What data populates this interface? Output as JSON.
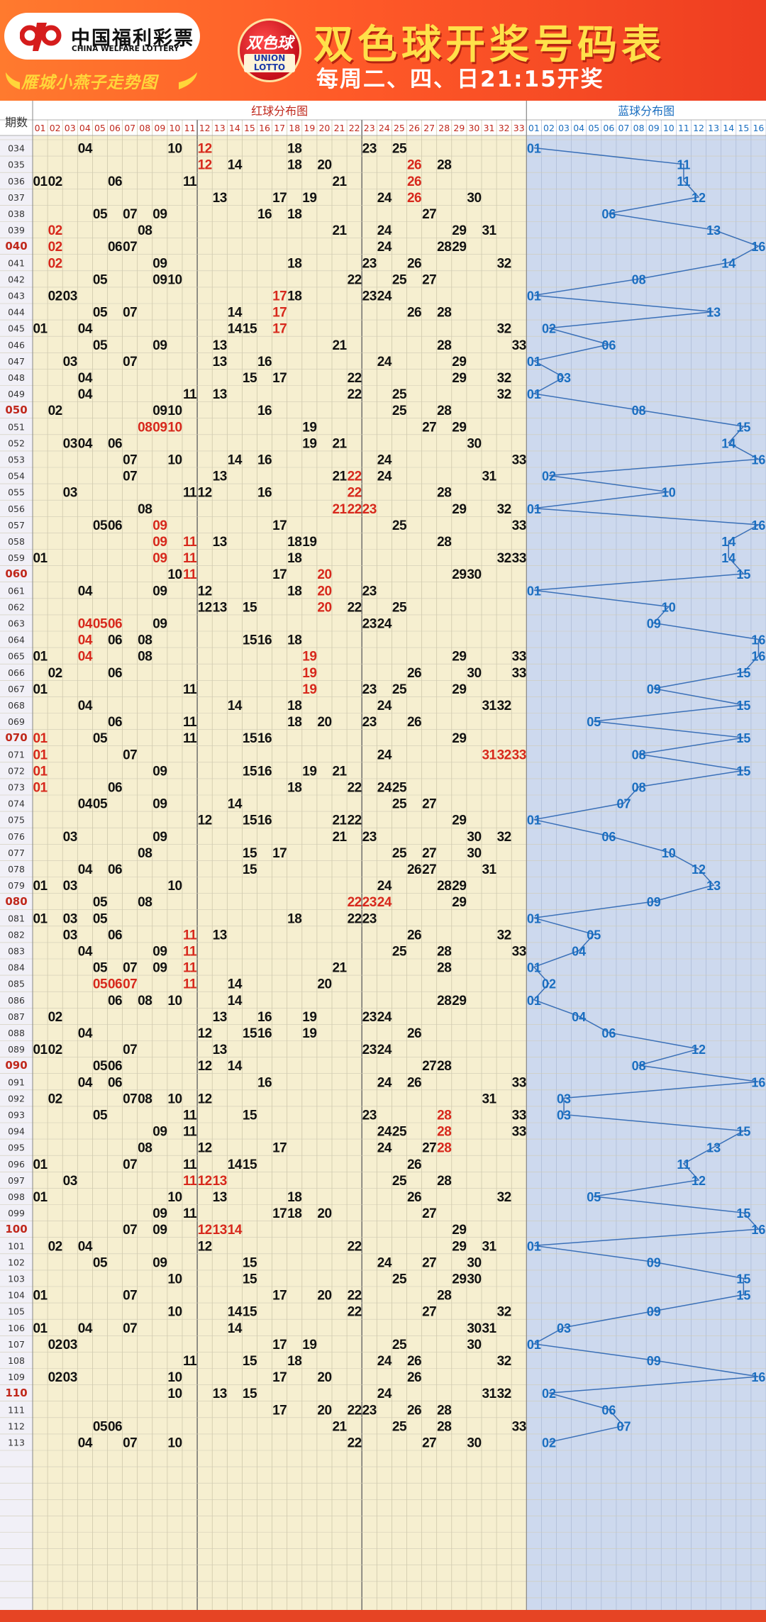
{
  "header": {
    "logo_cn": "中国福利彩票",
    "logo_en": "CHINA WELFARE LOTTERY",
    "union_cn": "双色球",
    "union_en_1": "UNION",
    "union_en_2": "LOTTO",
    "title": "双色球开奖号码表",
    "schedule": "每周二、四、日21:15开奖",
    "subtitle": "雁城小燕子走势图"
  },
  "colors": {
    "red_zone_bg": "#f6efd0",
    "blue_zone_bg": "#cdd9ee",
    "red_number": "#d7281c",
    "blue_number": "#1a6ec0",
    "black_number": "#111111",
    "line": "#3a70b8"
  },
  "chart_data": {
    "type": "table",
    "title": "双色球开奖号码表",
    "period_header": "期数",
    "red_zone_label": "红球分布图",
    "blue_zone_label": "蓝球分布图",
    "red_columns": [
      "01",
      "02",
      "03",
      "04",
      "05",
      "06",
      "07",
      "08",
      "09",
      "10",
      "11",
      "12",
      "13",
      "14",
      "15",
      "16",
      "17",
      "18",
      "19",
      "20",
      "21",
      "22",
      "23",
      "24",
      "25",
      "26",
      "27",
      "28",
      "29",
      "30",
      "31",
      "32",
      "33"
    ],
    "blue_columns": [
      "01",
      "02",
      "03",
      "04",
      "05",
      "06",
      "07",
      "08",
      "09",
      "10",
      "11",
      "12",
      "13",
      "14",
      "15",
      "16"
    ],
    "note": "highlight marks numbers drawn in red (repeat/consecutive indicators); bold periods shown in red",
    "draws": [
      {
        "period": "034",
        "red": [
          4,
          10,
          12,
          18,
          23,
          25
        ],
        "blue": 1,
        "highlight": [
          12
        ]
      },
      {
        "period": "035",
        "red": [
          12,
          14,
          18,
          20,
          26,
          28
        ],
        "blue": 11,
        "highlight": [
          12,
          26
        ]
      },
      {
        "period": "036",
        "red": [
          1,
          2,
          6,
          11,
          21,
          26
        ],
        "blue": 11,
        "highlight": [
          26
        ]
      },
      {
        "period": "037",
        "red": [
          13,
          17,
          19,
          24,
          26,
          30
        ],
        "blue": 12,
        "highlight": [
          26
        ]
      },
      {
        "period": "038",
        "red": [
          5,
          7,
          9,
          16,
          18,
          27
        ],
        "blue": 6,
        "highlight": []
      },
      {
        "period": "039",
        "red": [
          2,
          8,
          21,
          24,
          29,
          31
        ],
        "blue": 13,
        "highlight": [
          2
        ]
      },
      {
        "period": "040",
        "red": [
          2,
          6,
          7,
          24,
          28,
          29
        ],
        "blue": 16,
        "highlight": [
          2
        ]
      },
      {
        "period": "041",
        "red": [
          2,
          9,
          18,
          23,
          26,
          32
        ],
        "blue": 14,
        "highlight": [
          2
        ]
      },
      {
        "period": "042",
        "red": [
          5,
          9,
          10,
          22,
          25,
          27
        ],
        "blue": 8,
        "highlight": []
      },
      {
        "period": "043",
        "red": [
          2,
          3,
          17,
          18,
          23,
          24
        ],
        "blue": 1,
        "highlight": [
          17
        ]
      },
      {
        "period": "044",
        "red": [
          5,
          7,
          14,
          17,
          26,
          28
        ],
        "blue": 13,
        "highlight": [
          17
        ]
      },
      {
        "period": "045",
        "red": [
          1,
          4,
          14,
          15,
          17,
          32
        ],
        "blue": 2,
        "highlight": [
          17
        ]
      },
      {
        "period": "046",
        "red": [
          5,
          9,
          13,
          21,
          28,
          33
        ],
        "blue": 6,
        "highlight": []
      },
      {
        "period": "047",
        "red": [
          3,
          7,
          13,
          16,
          24,
          29
        ],
        "blue": 1,
        "highlight": []
      },
      {
        "period": "048",
        "red": [
          4,
          15,
          17,
          22,
          29,
          32
        ],
        "blue": 3,
        "highlight": []
      },
      {
        "period": "049",
        "red": [
          4,
          11,
          13,
          22,
          25,
          32
        ],
        "blue": 1,
        "highlight": []
      },
      {
        "period": "050",
        "red": [
          2,
          9,
          10,
          16,
          25,
          28
        ],
        "blue": 8,
        "highlight": []
      },
      {
        "period": "051",
        "red": [
          8,
          9,
          10,
          19,
          27,
          29
        ],
        "blue": 15,
        "highlight": [
          8,
          9,
          10
        ]
      },
      {
        "period": "052",
        "red": [
          3,
          4,
          6,
          19,
          21,
          30
        ],
        "blue": 14,
        "highlight": []
      },
      {
        "period": "053",
        "red": [
          7,
          10,
          14,
          16,
          24,
          33
        ],
        "blue": 16,
        "highlight": []
      },
      {
        "period": "054",
        "red": [
          7,
          13,
          21,
          22,
          24,
          31
        ],
        "blue": 2,
        "highlight": [
          22
        ]
      },
      {
        "period": "055",
        "red": [
          3,
          11,
          12,
          16,
          22,
          28
        ],
        "blue": 10,
        "highlight": [
          22
        ]
      },
      {
        "period": "056",
        "red": [
          8,
          21,
          22,
          23,
          29,
          32
        ],
        "blue": 1,
        "highlight": [
          21,
          22,
          23
        ]
      },
      {
        "period": "057",
        "red": [
          5,
          6,
          9,
          17,
          25,
          33
        ],
        "blue": 16,
        "highlight": [
          9
        ]
      },
      {
        "period": "058",
        "red": [
          9,
          11,
          13,
          18,
          19,
          28
        ],
        "blue": 14,
        "highlight": [
          9,
          11
        ]
      },
      {
        "period": "059",
        "red": [
          1,
          9,
          11,
          18,
          32,
          33
        ],
        "blue": 14,
        "highlight": [
          9,
          11
        ]
      },
      {
        "period": "060",
        "red": [
          10,
          11,
          17,
          20,
          29,
          30
        ],
        "blue": 15,
        "highlight": [
          11,
          20
        ]
      },
      {
        "period": "061",
        "red": [
          4,
          9,
          12,
          18,
          20,
          23
        ],
        "blue": 1,
        "highlight": [
          20
        ]
      },
      {
        "period": "062",
        "red": [
          12,
          13,
          15,
          20,
          22,
          25
        ],
        "blue": 10,
        "highlight": [
          20
        ]
      },
      {
        "period": "063",
        "red": [
          4,
          5,
          6,
          9,
          23,
          24
        ],
        "blue": 9,
        "highlight": [
          4,
          5,
          6
        ]
      },
      {
        "period": "064",
        "red": [
          4,
          6,
          8,
          15,
          16,
          18
        ],
        "blue": 16,
        "highlight": [
          4
        ]
      },
      {
        "period": "065",
        "red": [
          1,
          4,
          8,
          19,
          29,
          33
        ],
        "blue": 16,
        "highlight": [
          4,
          19
        ]
      },
      {
        "period": "066",
        "red": [
          2,
          6,
          19,
          26,
          30,
          33
        ],
        "blue": 15,
        "highlight": [
          19
        ]
      },
      {
        "period": "067",
        "red": [
          1,
          11,
          19,
          23,
          25,
          29
        ],
        "blue": 9,
        "highlight": [
          19
        ]
      },
      {
        "period": "068",
        "red": [
          4,
          14,
          18,
          24,
          31,
          32
        ],
        "blue": 15,
        "highlight": []
      },
      {
        "period": "069",
        "red": [
          6,
          11,
          18,
          20,
          23,
          26
        ],
        "blue": 5,
        "highlight": []
      },
      {
        "period": "070",
        "red": [
          1,
          5,
          11,
          15,
          16,
          29
        ],
        "blue": 15,
        "highlight": [
          1
        ]
      },
      {
        "period": "071",
        "red": [
          1,
          7,
          24,
          31,
          32,
          33
        ],
        "blue": 8,
        "highlight": [
          1,
          31,
          32,
          33
        ]
      },
      {
        "period": "072",
        "red": [
          1,
          9,
          15,
          16,
          19,
          21
        ],
        "blue": 15,
        "highlight": [
          1
        ]
      },
      {
        "period": "073",
        "red": [
          1,
          6,
          18,
          22,
          24,
          25
        ],
        "blue": 8,
        "highlight": [
          1
        ]
      },
      {
        "period": "074",
        "red": [
          4,
          5,
          9,
          14,
          25,
          27
        ],
        "blue": 7,
        "highlight": []
      },
      {
        "period": "075",
        "red": [
          12,
          15,
          16,
          21,
          22,
          29
        ],
        "blue": 1,
        "highlight": []
      },
      {
        "period": "076",
        "red": [
          3,
          9,
          21,
          23,
          30,
          32
        ],
        "blue": 6,
        "highlight": []
      },
      {
        "period": "077",
        "red": [
          8,
          15,
          17,
          25,
          27,
          30
        ],
        "blue": 10,
        "highlight": []
      },
      {
        "period": "078",
        "red": [
          4,
          6,
          15,
          26,
          27,
          31
        ],
        "blue": 12,
        "highlight": []
      },
      {
        "period": "079",
        "red": [
          1,
          3,
          10,
          24,
          28,
          29
        ],
        "blue": 13,
        "highlight": []
      },
      {
        "period": "080",
        "red": [
          5,
          8,
          22,
          23,
          24,
          29
        ],
        "blue": 9,
        "highlight": [
          22,
          23,
          24
        ]
      },
      {
        "period": "081",
        "red": [
          1,
          3,
          5,
          18,
          22,
          23
        ],
        "blue": 1,
        "highlight": []
      },
      {
        "period": "082",
        "red": [
          3,
          6,
          11,
          13,
          26,
          32
        ],
        "blue": 5,
        "highlight": [
          11
        ]
      },
      {
        "period": "083",
        "red": [
          4,
          9,
          11,
          25,
          28,
          33
        ],
        "blue": 4,
        "highlight": [
          11
        ]
      },
      {
        "period": "084",
        "red": [
          5,
          7,
          9,
          11,
          21,
          28
        ],
        "blue": 1,
        "highlight": [
          11
        ]
      },
      {
        "period": "085",
        "red": [
          5,
          6,
          7,
          11,
          14,
          20
        ],
        "blue": 2,
        "highlight": [
          5,
          6,
          7,
          11
        ]
      },
      {
        "period": "086",
        "red": [
          6,
          8,
          10,
          14,
          28,
          29
        ],
        "blue": 1,
        "highlight": []
      },
      {
        "period": "087",
        "red": [
          2,
          13,
          16,
          19,
          23,
          24
        ],
        "blue": 4,
        "highlight": []
      },
      {
        "period": "088",
        "red": [
          4,
          12,
          15,
          16,
          19,
          26
        ],
        "blue": 6,
        "highlight": []
      },
      {
        "period": "089",
        "red": [
          1,
          2,
          7,
          13,
          23,
          24
        ],
        "blue": 12,
        "highlight": []
      },
      {
        "period": "090",
        "red": [
          5,
          6,
          12,
          14,
          27,
          28
        ],
        "blue": 8,
        "highlight": []
      },
      {
        "period": "091",
        "red": [
          4,
          6,
          16,
          24,
          26,
          33
        ],
        "blue": 16,
        "highlight": []
      },
      {
        "period": "092",
        "red": [
          2,
          7,
          8,
          10,
          12,
          31
        ],
        "blue": 3,
        "highlight": []
      },
      {
        "period": "093",
        "red": [
          5,
          11,
          15,
          23,
          28,
          33
        ],
        "blue": 3,
        "highlight": [
          28
        ]
      },
      {
        "period": "094",
        "red": [
          9,
          11,
          24,
          25,
          28,
          33
        ],
        "blue": 15,
        "highlight": [
          28
        ]
      },
      {
        "period": "095",
        "red": [
          8,
          12,
          17,
          24,
          27,
          28
        ],
        "blue": 13,
        "highlight": [
          28
        ]
      },
      {
        "period": "096",
        "red": [
          1,
          7,
          11,
          14,
          15,
          26
        ],
        "blue": 11,
        "highlight": []
      },
      {
        "period": "097",
        "red": [
          3,
          11,
          12,
          13,
          25,
          28
        ],
        "blue": 12,
        "highlight": [
          11,
          12,
          13
        ]
      },
      {
        "period": "098",
        "red": [
          1,
          10,
          13,
          18,
          26,
          32
        ],
        "blue": 5,
        "highlight": []
      },
      {
        "period": "099",
        "red": [
          9,
          11,
          17,
          18,
          20,
          27
        ],
        "blue": 15,
        "highlight": []
      },
      {
        "period": "100",
        "red": [
          7,
          9,
          12,
          13,
          14,
          29
        ],
        "blue": 16,
        "highlight": [
          12,
          13,
          14
        ]
      },
      {
        "period": "101",
        "red": [
          2,
          4,
          12,
          22,
          29,
          31
        ],
        "blue": 1,
        "highlight": []
      },
      {
        "period": "102",
        "red": [
          5,
          9,
          15,
          24,
          27,
          30
        ],
        "blue": 9,
        "highlight": []
      },
      {
        "period": "103",
        "red": [
          10,
          15,
          25,
          29,
          30
        ],
        "blue": 15,
        "highlight": []
      },
      {
        "period": "104",
        "red": [
          1,
          7,
          17,
          20,
          22,
          28
        ],
        "blue": 15,
        "highlight": []
      },
      {
        "period": "105",
        "red": [
          10,
          14,
          15,
          22,
          27,
          32
        ],
        "blue": 9,
        "highlight": []
      },
      {
        "period": "106",
        "red": [
          1,
          4,
          7,
          14,
          30,
          31
        ],
        "blue": 3,
        "highlight": []
      },
      {
        "period": "107",
        "red": [
          2,
          3,
          17,
          19,
          25,
          30
        ],
        "blue": 1,
        "highlight": []
      },
      {
        "period": "108",
        "red": [
          11,
          15,
          18,
          24,
          26,
          32
        ],
        "blue": 9,
        "highlight": []
      },
      {
        "period": "109",
        "red": [
          2,
          3,
          10,
          17,
          20,
          26
        ],
        "blue": 16,
        "highlight": []
      },
      {
        "period": "110",
        "red": [
          10,
          13,
          15,
          24,
          31,
          32
        ],
        "blue": 2,
        "highlight": []
      },
      {
        "period": "111",
        "red": [
          17,
          20,
          22,
          23,
          26,
          28
        ],
        "blue": 6,
        "highlight": []
      },
      {
        "period": "112",
        "red": [
          5,
          6,
          21,
          25,
          28,
          33
        ],
        "blue": 7,
        "highlight": []
      },
      {
        "period": "113",
        "red": [
          4,
          7,
          10,
          22,
          27,
          30
        ],
        "blue": 2,
        "highlight": []
      }
    ],
    "bold_periods": [
      "040",
      "050",
      "060",
      "070",
      "080",
      "090",
      "100",
      "110"
    ]
  }
}
